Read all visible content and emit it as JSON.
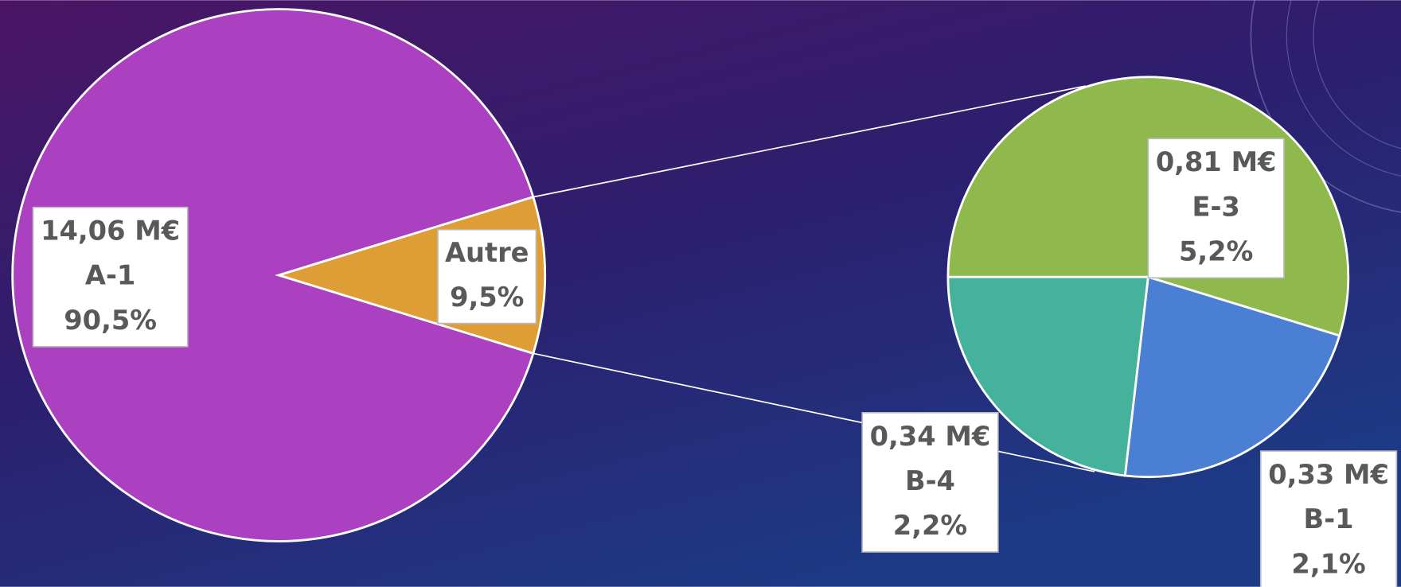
{
  "chart_data": {
    "type": "pie-of-pie",
    "categories": [
      "A-1",
      "Autre"
    ],
    "values": [
      90.5,
      9.5
    ],
    "value_labels": [
      "90,5%",
      "9,5%"
    ],
    "amount_labels": [
      "14,06 M€",
      null
    ],
    "colors": [
      "#ab40c0",
      "#de9e35"
    ],
    "secondary": {
      "categories": [
        "E-3",
        "B-1",
        "B-4"
      ],
      "values": [
        5.2,
        2.1,
        2.2
      ],
      "value_labels": [
        "5,2%",
        "2,1%",
        "2,2%"
      ],
      "amount_labels": [
        "0,81 M€",
        "0,33 M€",
        "0,34 M€"
      ],
      "colors": [
        "#8fb94c",
        "#4a7fd4",
        "#45b39b"
      ]
    }
  }
}
